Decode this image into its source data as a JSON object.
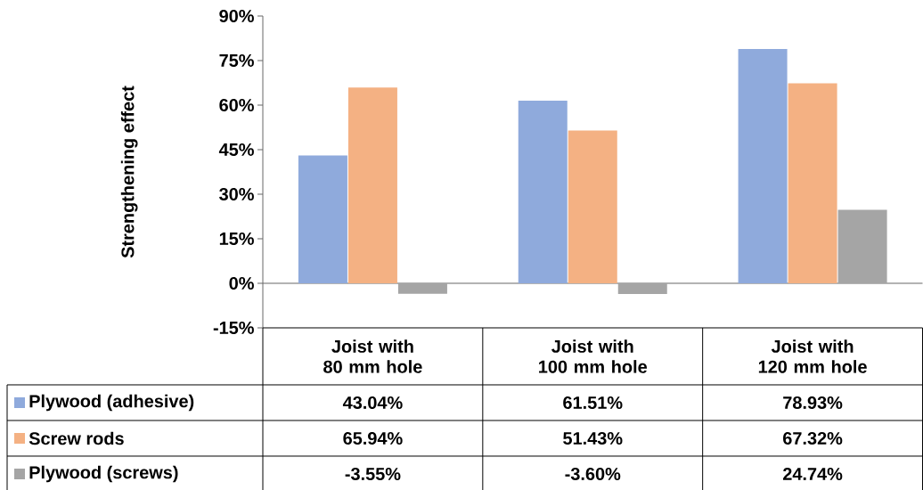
{
  "chart_data": {
    "type": "bar",
    "categories": [
      "Joist with 80 mm hole",
      "Joist with 100 mm hole",
      "Joist with 120 mm hole"
    ],
    "ylabel": "Strengthening effect",
    "ylim": [
      -15,
      90
    ],
    "yticks": [
      {
        "value": -15,
        "label": "-15%"
      },
      {
        "value": 0,
        "label": "0%"
      },
      {
        "value": 15,
        "label": "15%"
      },
      {
        "value": 30,
        "label": "30%"
      },
      {
        "value": 45,
        "label": "45%"
      },
      {
        "value": 60,
        "label": "60%"
      },
      {
        "value": 75,
        "label": "75%"
      },
      {
        "value": 90,
        "label": "90%"
      }
    ],
    "legend": "bottom",
    "series": [
      {
        "name": "Plywood (adhesive)",
        "color": "#8faadc",
        "values": [
          43.04,
          61.51,
          78.93
        ],
        "value_labels": [
          "43.04%",
          "61.51%",
          "78.93%"
        ]
      },
      {
        "name": "Screw rods",
        "color": "#f4b183",
        "values": [
          65.94,
          51.43,
          67.32
        ],
        "value_labels": [
          "65.94%",
          "51.43%",
          "67.32%"
        ]
      },
      {
        "name": "Plywood (screws)",
        "color": "#a5a5a5",
        "values": [
          -3.55,
          -3.6,
          24.74
        ],
        "value_labels": [
          "-3.55%",
          "-3.60%",
          "24.74%"
        ]
      }
    ]
  }
}
